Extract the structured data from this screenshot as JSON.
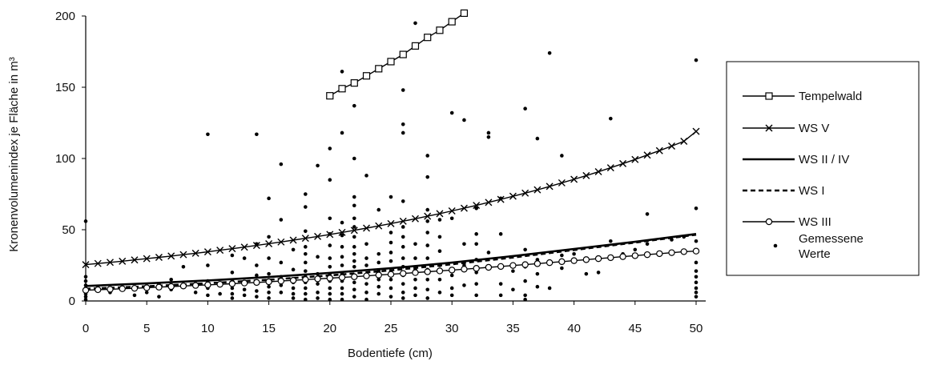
{
  "chart_data": {
    "type": "scatter",
    "xlabel": "Bodentiefe (cm)",
    "ylabel": "Kronenvolumenindex je Fläche in m³",
    "xlim": [
      0,
      50
    ],
    "ylim": [
      0,
      200
    ],
    "x_ticks": [
      "0",
      "5",
      "10",
      "15",
      "20",
      "25",
      "30",
      "35",
      "40",
      "45",
      "50"
    ],
    "y_ticks": [
      "0",
      "50",
      "100",
      "150",
      "200"
    ],
    "grid": false,
    "legend_position": "right",
    "series": [
      {
        "name": "Tempelwald",
        "style": "line-square-markers",
        "x": [
          20,
          21,
          22,
          23,
          24,
          25,
          26,
          27,
          28,
          29,
          30,
          31
        ],
        "y": [
          144,
          149,
          153,
          158,
          163,
          168,
          173,
          179,
          185,
          190,
          196,
          202
        ]
      },
      {
        "name": "WS V",
        "style": "line-x-markers",
        "x": [
          0,
          1,
          2,
          3,
          4,
          5,
          6,
          7,
          8,
          9,
          10,
          11,
          12,
          13,
          14,
          15,
          16,
          17,
          18,
          19,
          20,
          21,
          22,
          23,
          24,
          25,
          26,
          27,
          28,
          29,
          30,
          31,
          32,
          33,
          34,
          35,
          36,
          37,
          38,
          39,
          40,
          41,
          42,
          43,
          44,
          45,
          46,
          47,
          48,
          49,
          50
        ],
        "y": [
          25.5,
          26.3,
          27.1,
          27.9,
          28.8,
          29.7,
          30.6,
          31.5,
          32.5,
          33.5,
          34.5,
          35.6,
          36.7,
          37.8,
          39.0,
          40.2,
          41.4,
          42.7,
          44.0,
          45.3,
          46.7,
          48.1,
          49.6,
          51.1,
          52.7,
          54.3,
          56.0,
          57.7,
          59.5,
          61.3,
          63.2,
          65.1,
          67.1,
          69.2,
          71.3,
          73.5,
          75.7,
          78.0,
          80.4,
          82.9,
          85.4,
          88.0,
          90.7,
          93.5,
          96.4,
          99.3,
          102.4,
          105.5,
          108.7,
          112.1,
          119.0
        ]
      },
      {
        "name": "WS II / IV",
        "style": "thick-line",
        "x": [
          0,
          5,
          10,
          15,
          20,
          25,
          30,
          35,
          40,
          45,
          50
        ],
        "y": [
          10.5,
          12.3,
          14.4,
          16.8,
          19.7,
          23.0,
          26.9,
          31.5,
          36.5,
          41.5,
          47.0
        ]
      },
      {
        "name": "WS I",
        "style": "dashed-line",
        "x": [
          0,
          5,
          10,
          15,
          20,
          25,
          30,
          35,
          40,
          45,
          50
        ],
        "y": [
          8.5,
          10.3,
          12.4,
          14.9,
          17.9,
          21.5,
          25.8,
          30.5,
          35.8,
          41.0,
          46.5
        ]
      },
      {
        "name": "WS III",
        "style": "line-circle-markers",
        "x": [
          0,
          1,
          2,
          3,
          4,
          5,
          6,
          7,
          8,
          9,
          10,
          11,
          12,
          13,
          14,
          15,
          16,
          17,
          18,
          19,
          20,
          21,
          22,
          23,
          24,
          25,
          26,
          27,
          28,
          29,
          30,
          31,
          32,
          33,
          34,
          35,
          36,
          37,
          38,
          39,
          40,
          41,
          42,
          43,
          44,
          45,
          46,
          47,
          48,
          49,
          50
        ],
        "y": [
          7.5,
          7.9,
          8.2,
          8.6,
          8.9,
          9.3,
          9.7,
          10.1,
          10.5,
          10.9,
          11.3,
          11.7,
          12.1,
          12.6,
          13.0,
          13.5,
          14.0,
          14.5,
          15.0,
          15.5,
          16.0,
          16.5,
          17.0,
          17.6,
          18.2,
          18.7,
          19.3,
          19.9,
          20.5,
          21.1,
          21.7,
          22.3,
          22.9,
          23.6,
          24.2,
          24.9,
          25.5,
          26.2,
          26.9,
          27.6,
          28.3,
          29.0,
          29.7,
          30.4,
          31.1,
          31.8,
          32.5,
          33.2,
          33.9,
          34.6,
          35.0
        ]
      },
      {
        "name": "Gemessene Werte",
        "style": "points",
        "points": [
          [
            0,
            56
          ],
          [
            0,
            17
          ],
          [
            0,
            14
          ],
          [
            0,
            11
          ],
          [
            0,
            9
          ],
          [
            0,
            7
          ],
          [
            0,
            5
          ],
          [
            0,
            3
          ],
          [
            0,
            1
          ],
          [
            1,
            8
          ],
          [
            2,
            6
          ],
          [
            3,
            9
          ],
          [
            4,
            4
          ],
          [
            5,
            10
          ],
          [
            5,
            6
          ],
          [
            6,
            12
          ],
          [
            6,
            3
          ],
          [
            7,
            15
          ],
          [
            7,
            8
          ],
          [
            8,
            24
          ],
          [
            8,
            11
          ],
          [
            9,
            6
          ],
          [
            10,
            117
          ],
          [
            10,
            25
          ],
          [
            10,
            14
          ],
          [
            10,
            9
          ],
          [
            10,
            4
          ],
          [
            11,
            12
          ],
          [
            11,
            5
          ],
          [
            12,
            32
          ],
          [
            12,
            20
          ],
          [
            12,
            14
          ],
          [
            12,
            9
          ],
          [
            12,
            5
          ],
          [
            12,
            2
          ],
          [
            13,
            30
          ],
          [
            13,
            13
          ],
          [
            13,
            8
          ],
          [
            13,
            4
          ],
          [
            14,
            117
          ],
          [
            14,
            40
          ],
          [
            14,
            25
          ],
          [
            14,
            18
          ],
          [
            14,
            12
          ],
          [
            14,
            7
          ],
          [
            14,
            3
          ],
          [
            15,
            72
          ],
          [
            15,
            45
          ],
          [
            15,
            30
          ],
          [
            15,
            19
          ],
          [
            15,
            14
          ],
          [
            15,
            10
          ],
          [
            15,
            6
          ],
          [
            15,
            2
          ],
          [
            16,
            96
          ],
          [
            16,
            57
          ],
          [
            16,
            27
          ],
          [
            16,
            17
          ],
          [
            16,
            11
          ],
          [
            16,
            6
          ],
          [
            17,
            36
          ],
          [
            17,
            22
          ],
          [
            17,
            13
          ],
          [
            17,
            9
          ],
          [
            17,
            5
          ],
          [
            17,
            2
          ],
          [
            18,
            75
          ],
          [
            18,
            66
          ],
          [
            18,
            49
          ],
          [
            18,
            38
          ],
          [
            18,
            33
          ],
          [
            18,
            27
          ],
          [
            18,
            21
          ],
          [
            18,
            17
          ],
          [
            18,
            13
          ],
          [
            18,
            9
          ],
          [
            18,
            5
          ],
          [
            18,
            1
          ],
          [
            19,
            95
          ],
          [
            19,
            31
          ],
          [
            19,
            19
          ],
          [
            19,
            12
          ],
          [
            19,
            6
          ],
          [
            19,
            2
          ],
          [
            20,
            107
          ],
          [
            20,
            85
          ],
          [
            20,
            58
          ],
          [
            20,
            47
          ],
          [
            20,
            39
          ],
          [
            20,
            30
          ],
          [
            20,
            24
          ],
          [
            20,
            19
          ],
          [
            20,
            14
          ],
          [
            20,
            9
          ],
          [
            20,
            5
          ],
          [
            20,
            1
          ],
          [
            21,
            161
          ],
          [
            21,
            118
          ],
          [
            21,
            55
          ],
          [
            21,
            46
          ],
          [
            21,
            38
          ],
          [
            21,
            31
          ],
          [
            21,
            25
          ],
          [
            21,
            19
          ],
          [
            21,
            14
          ],
          [
            21,
            9
          ],
          [
            21,
            5
          ],
          [
            21,
            1
          ],
          [
            22,
            137
          ],
          [
            22,
            100
          ],
          [
            22,
            73
          ],
          [
            22,
            67
          ],
          [
            22,
            58
          ],
          [
            22,
            52
          ],
          [
            22,
            45
          ],
          [
            22,
            38
          ],
          [
            22,
            33
          ],
          [
            22,
            28
          ],
          [
            22,
            24
          ],
          [
            22,
            18
          ],
          [
            22,
            13
          ],
          [
            22,
            8
          ],
          [
            22,
            3
          ],
          [
            23,
            88
          ],
          [
            23,
            40
          ],
          [
            23,
            30
          ],
          [
            23,
            25
          ],
          [
            23,
            18
          ],
          [
            23,
            12
          ],
          [
            23,
            6
          ],
          [
            23,
            1
          ],
          [
            24,
            64
          ],
          [
            24,
            33
          ],
          [
            24,
            27
          ],
          [
            24,
            21
          ],
          [
            24,
            15
          ],
          [
            24,
            10
          ],
          [
            24,
            5
          ],
          [
            25,
            73
          ],
          [
            25,
            48
          ],
          [
            25,
            41
          ],
          [
            25,
            34
          ],
          [
            25,
            28
          ],
          [
            25,
            21
          ],
          [
            25,
            15
          ],
          [
            25,
            9
          ],
          [
            25,
            3
          ],
          [
            26,
            148
          ],
          [
            26,
            124
          ],
          [
            26,
            118
          ],
          [
            26,
            70
          ],
          [
            26,
            52
          ],
          [
            26,
            45
          ],
          [
            26,
            38
          ],
          [
            26,
            30
          ],
          [
            26,
            24
          ],
          [
            26,
            18
          ],
          [
            26,
            12
          ],
          [
            26,
            6
          ],
          [
            26,
            2
          ],
          [
            27,
            195
          ],
          [
            27,
            40
          ],
          [
            27,
            30
          ],
          [
            27,
            22
          ],
          [
            27,
            15
          ],
          [
            27,
            9
          ],
          [
            27,
            4
          ],
          [
            28,
            102
          ],
          [
            28,
            87
          ],
          [
            28,
            64
          ],
          [
            28,
            56
          ],
          [
            28,
            48
          ],
          [
            28,
            39
          ],
          [
            28,
            30
          ],
          [
            28,
            22
          ],
          [
            28,
            15
          ],
          [
            28,
            8
          ],
          [
            28,
            2
          ],
          [
            29,
            57
          ],
          [
            29,
            45
          ],
          [
            29,
            35
          ],
          [
            29,
            25
          ],
          [
            29,
            15
          ],
          [
            29,
            6
          ],
          [
            30,
            132
          ],
          [
            30,
            58
          ],
          [
            30,
            18
          ],
          [
            30,
            9
          ],
          [
            30,
            4
          ],
          [
            31,
            127
          ],
          [
            31,
            40
          ],
          [
            31,
            25
          ],
          [
            31,
            11
          ],
          [
            32,
            65
          ],
          [
            32,
            47
          ],
          [
            32,
            40
          ],
          [
            32,
            29
          ],
          [
            32,
            20
          ],
          [
            32,
            12
          ],
          [
            32,
            4
          ],
          [
            33,
            118
          ],
          [
            33,
            115
          ],
          [
            33,
            34
          ],
          [
            33,
            23
          ],
          [
            34,
            72
          ],
          [
            34,
            47
          ],
          [
            34,
            12
          ],
          [
            34,
            4
          ],
          [
            35,
            21
          ],
          [
            35,
            8
          ],
          [
            36,
            135
          ],
          [
            36,
            36
          ],
          [
            36,
            24
          ],
          [
            36,
            14
          ],
          [
            36,
            4
          ],
          [
            36,
            1
          ],
          [
            37,
            114
          ],
          [
            37,
            29
          ],
          [
            37,
            19
          ],
          [
            37,
            10
          ],
          [
            38,
            174
          ],
          [
            38,
            9
          ],
          [
            39,
            102
          ],
          [
            39,
            32
          ],
          [
            39,
            23
          ],
          [
            40,
            33
          ],
          [
            41,
            29
          ],
          [
            41,
            19
          ],
          [
            42,
            20
          ],
          [
            43,
            128
          ],
          [
            43,
            42
          ],
          [
            44,
            33
          ],
          [
            45,
            36
          ],
          [
            46,
            61
          ],
          [
            46,
            40
          ],
          [
            48,
            43
          ],
          [
            49,
            45
          ],
          [
            50,
            169
          ],
          [
            50,
            65
          ],
          [
            50,
            42
          ],
          [
            50,
            35
          ],
          [
            50,
            27
          ],
          [
            50,
            21
          ],
          [
            50,
            17
          ],
          [
            50,
            13
          ],
          [
            50,
            9
          ],
          [
            50,
            6
          ],
          [
            50,
            3
          ]
        ]
      }
    ],
    "legend": [
      {
        "label": "Tempelwald",
        "style": "line-square-markers"
      },
      {
        "label": "WS V",
        "style": "line-x-markers"
      },
      {
        "label": "WS II / IV",
        "style": "thick-line"
      },
      {
        "label": "WS I",
        "style": "dashed-line"
      },
      {
        "label": "WS III",
        "style": "line-circle-markers"
      },
      {
        "label": "Gemessene\nWerte",
        "style": "points"
      }
    ]
  }
}
